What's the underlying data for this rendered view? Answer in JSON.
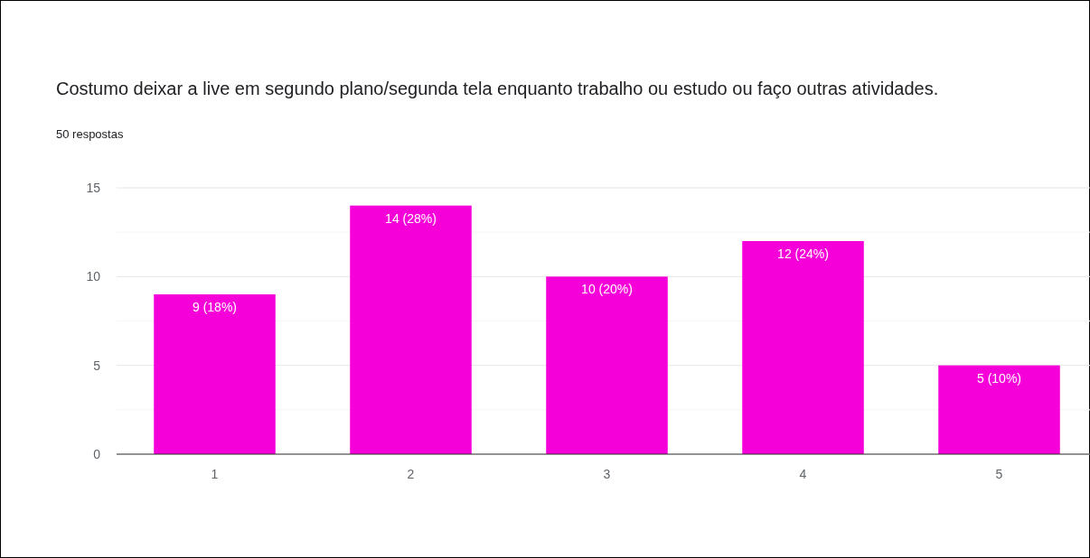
{
  "chart_data": {
    "type": "bar",
    "title": "Costumo deixar a live em segundo plano/segunda tela enquanto trabalho ou estudo ou faço outras atividades.",
    "subtitle": "50 respostas",
    "categories": [
      "1",
      "2",
      "3",
      "4",
      "5"
    ],
    "values": [
      9,
      14,
      10,
      12,
      5
    ],
    "value_labels": [
      "9 (18%)",
      "14 (28%)",
      "10 (20%)",
      "12 (24%)",
      "5 (10%)"
    ],
    "color": "#f500d8",
    "ylim": [
      0,
      15
    ],
    "yticks": [
      0,
      {
        "value": 2.5,
        "label": null
      },
      5,
      {
        "value": 7.5,
        "label": null
      },
      10,
      {
        "value": 12.5,
        "label": null
      },
      15
    ],
    "grid": true
  }
}
